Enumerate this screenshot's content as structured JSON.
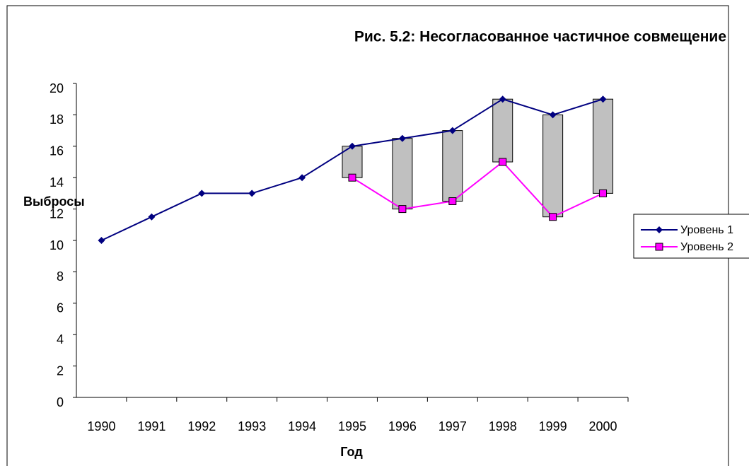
{
  "chart_data": {
    "type": "line",
    "title": "Рис. 5.2: Несогласованное частичное совмещение",
    "y_label": "Выбросы",
    "x_label": "Год",
    "categories": [
      "1990",
      "1991",
      "1992",
      "1993",
      "1994",
      "1995",
      "1996",
      "1997",
      "1998",
      "1999",
      "2000"
    ],
    "series": [
      {
        "name": "Уровень 1",
        "color": "#000080",
        "marker": "diamond",
        "values": [
          10,
          11.5,
          13,
          13,
          14,
          16,
          16.5,
          17,
          19,
          18,
          19
        ]
      },
      {
        "name": "Уровень 2",
        "color": "#ff00ff",
        "marker": "square",
        "values": [
          null,
          null,
          null,
          null,
          null,
          14,
          12,
          12.5,
          15,
          11.5,
          13
        ]
      }
    ],
    "high_low_bars": true,
    "bar_color": "#c0c0c0",
    "ylim": [
      0,
      20
    ],
    "yticks": [
      0,
      2,
      4,
      6,
      8,
      10,
      12,
      14,
      16,
      18,
      20
    ],
    "legend": "right"
  }
}
